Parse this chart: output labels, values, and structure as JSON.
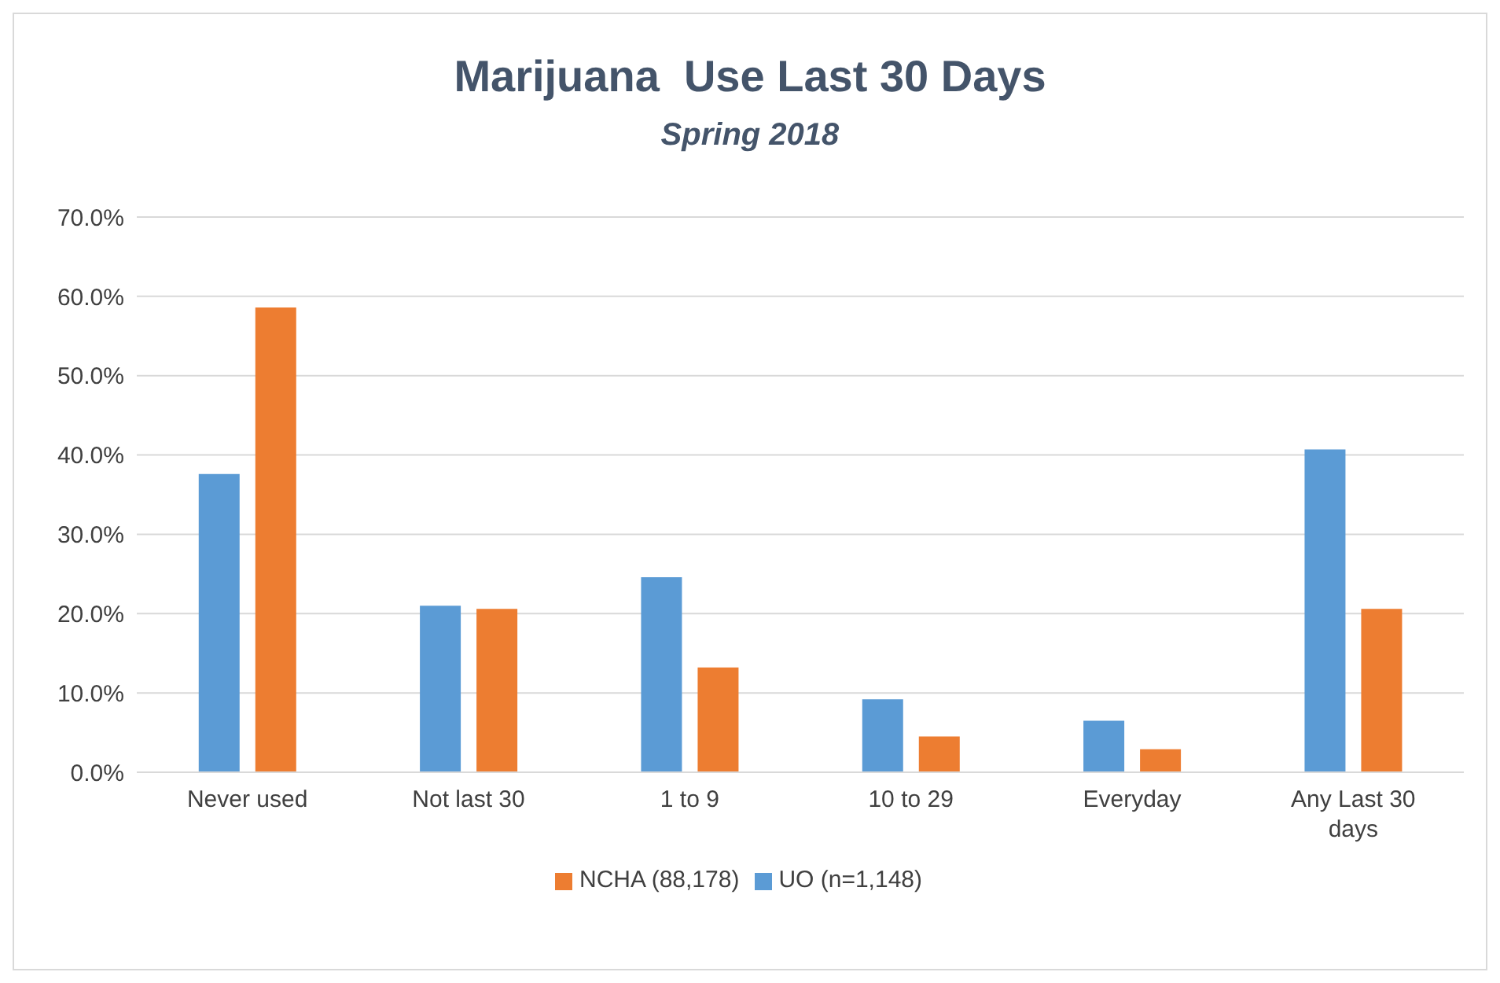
{
  "chart_data": {
    "type": "bar",
    "title": "Marijuana  Use Last 30 Days",
    "subtitle": "Spring 2018",
    "categories": [
      "Never used",
      "Not last 30",
      "1 to 9",
      "10 to 29",
      "Everyday",
      "Any Last 30 days"
    ],
    "series": [
      {
        "name": "UO (n=1,148)",
        "color": "#5b9bd5",
        "values": [
          37.6,
          21.0,
          24.6,
          9.2,
          6.5,
          40.7
        ]
      },
      {
        "name": "NCHA (88,178)",
        "color": "#ed7d31",
        "values": [
          58.6,
          20.6,
          13.2,
          4.5,
          2.9,
          20.6
        ]
      }
    ],
    "ylim": [
      0,
      70
    ],
    "yticks": [
      {
        "value": 0,
        "label": "0.0%"
      },
      {
        "value": 10,
        "label": "10.0%"
      },
      {
        "value": 20,
        "label": "20.0%"
      },
      {
        "value": 30,
        "label": "30.0%"
      },
      {
        "value": 40,
        "label": "40.0%"
      },
      {
        "value": 50,
        "label": "50.0%"
      },
      {
        "value": 60,
        "label": "60.0%"
      },
      {
        "value": 70,
        "label": "70.0%"
      }
    ],
    "grid": "y",
    "legend": "bottom"
  }
}
